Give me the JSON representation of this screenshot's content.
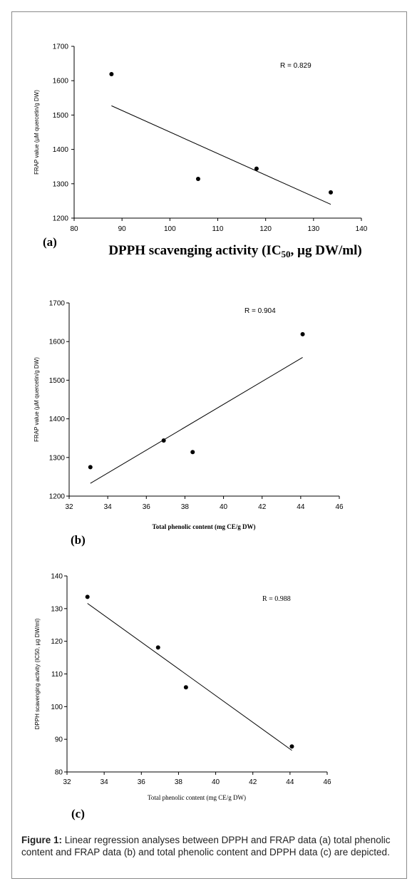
{
  "chart_data": [
    {
      "type": "scatter",
      "panel": "(a)",
      "xlabel_main": "DPPH scavenging activity (IC",
      "xlabel_sub": "50",
      "xlabel_tail": ", µg DW/ml)",
      "ylabel": "FRAP value (µM quercetin/g DW)",
      "annotation": "R = 0.829",
      "xlim": [
        80,
        140
      ],
      "ylim": [
        1200,
        1700
      ],
      "xticks": [
        80,
        90,
        100,
        110,
        120,
        130,
        140
      ],
      "yticks": [
        1200,
        1300,
        1400,
        1500,
        1600,
        1700
      ],
      "points": [
        {
          "x": 87.8,
          "y": 1619
        },
        {
          "x": 105.9,
          "y": 1314
        },
        {
          "x": 118.1,
          "y": 1344
        },
        {
          "x": 133.6,
          "y": 1275
        }
      ],
      "trendline": {
        "x1": 87.8,
        "y1": 1527,
        "x2": 133.6,
        "y2": 1240
      }
    },
    {
      "type": "scatter",
      "panel": "(b)",
      "xlabel": "Total phenolic content (mg CE/g DW)",
      "ylabel": "FRAP value (µM quercetin/g DW)",
      "annotation": "R = 0.904",
      "xlim": [
        32,
        46
      ],
      "ylim": [
        1200,
        1700
      ],
      "xticks": [
        32,
        34,
        36,
        38,
        40,
        42,
        44,
        46
      ],
      "yticks": [
        1200,
        1300,
        1400,
        1500,
        1600,
        1700
      ],
      "points": [
        {
          "x": 33.1,
          "y": 1275
        },
        {
          "x": 36.9,
          "y": 1344
        },
        {
          "x": 38.4,
          "y": 1314
        },
        {
          "x": 44.1,
          "y": 1619
        }
      ],
      "trendline": {
        "x1": 33.1,
        "y1": 1233,
        "x2": 44.1,
        "y2": 1559
      }
    },
    {
      "type": "scatter",
      "panel": "(c)",
      "xlabel": "Total phenolic content (mg CE/g DW)",
      "ylabel": "DPPH scavenging activity (IC50, µg DW/ml)",
      "annotation": "R = 0.988",
      "xlim": [
        32,
        46
      ],
      "ylim": [
        80,
        140
      ],
      "xticks": [
        32,
        34,
        36,
        38,
        40,
        42,
        44,
        46
      ],
      "yticks": [
        80,
        90,
        100,
        110,
        120,
        130,
        140
      ],
      "points": [
        {
          "x": 33.1,
          "y": 133.6
        },
        {
          "x": 36.9,
          "y": 118.1
        },
        {
          "x": 38.4,
          "y": 105.9
        },
        {
          "x": 44.1,
          "y": 87.8
        }
      ],
      "trendline": {
        "x1": 33.1,
        "y1": 131.6,
        "x2": 44.1,
        "y2": 86.6
      }
    }
  ],
  "caption": {
    "label": "Figure 1:",
    "text": " Linear regression analyses between DPPH and FRAP data (a) total phenolic content and FRAP data (b) and total phenolic content and DPPH data (c) are depicted."
  }
}
